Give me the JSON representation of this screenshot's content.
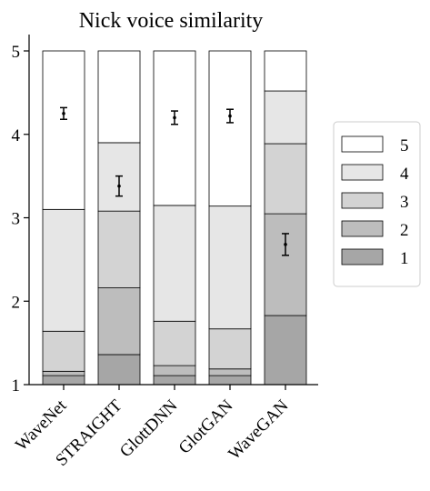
{
  "chart_data": {
    "type": "bar",
    "subtype": "stacked-100-percent",
    "title": "Nick voice similarity",
    "categories": [
      "WaveNet",
      "STRAIGHT",
      "GlottDNN",
      "GlotGAN",
      "WaveGAN"
    ],
    "ylim": [
      1,
      5
    ],
    "yticks": [
      1,
      2,
      3,
      4,
      5
    ],
    "grid": false,
    "legend_position": "right",
    "stack_order_bottom_to_top": [
      "1",
      "2",
      "3",
      "4",
      "5"
    ],
    "series": [
      {
        "name": "1",
        "color": "#a6a6a6",
        "values": [
          0.027,
          0.09,
          0.027,
          0.027,
          0.207
        ]
      },
      {
        "name": "2",
        "color": "#bdbdbd",
        "values": [
          0.013,
          0.2,
          0.03,
          0.02,
          0.305
        ]
      },
      {
        "name": "3",
        "color": "#d3d3d3",
        "values": [
          0.12,
          0.23,
          0.133,
          0.12,
          0.21
        ]
      },
      {
        "name": "4",
        "color": "#e6e6e6",
        "values": [
          0.365,
          0.205,
          0.347,
          0.368,
          0.158
        ]
      },
      {
        "name": "5",
        "color": "#ffffff",
        "values": [
          0.475,
          0.275,
          0.463,
          0.465,
          0.12
        ]
      }
    ],
    "mean_scores": [
      4.25,
      3.38,
      4.2,
      4.22,
      2.68
    ],
    "error_bars": [
      0.07,
      0.12,
      0.08,
      0.08,
      0.13
    ]
  }
}
